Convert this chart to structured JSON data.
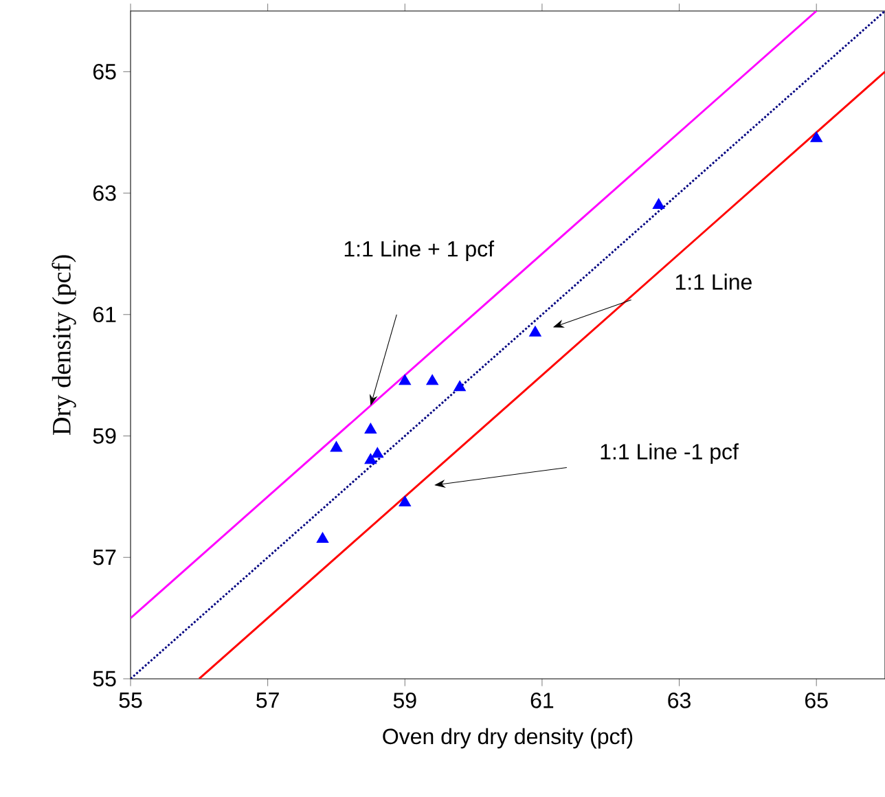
{
  "chart_data": {
    "type": "scatter",
    "xlabel": "Oven dry dry density (pcf)",
    "ylabel": "Dry density (pcf)",
    "xlim": [
      55,
      66
    ],
    "ylim": [
      55,
      66
    ],
    "xticks": [
      55,
      57,
      59,
      61,
      63,
      65
    ],
    "yticks": [
      55,
      57,
      59,
      61,
      63,
      65
    ],
    "grid": false,
    "series": [
      {
        "type": "line",
        "color": "#ff00ff",
        "line_style": "solid",
        "marker": "none",
        "x": [
          55,
          65
        ],
        "values": [
          56,
          66
        ]
      },
      {
        "type": "line",
        "color": "#ff0000",
        "line_style": "solid",
        "marker": "none",
        "x": [
          56,
          66
        ],
        "values": [
          55,
          65
        ]
      },
      {
        "type": "line",
        "color": "#000080",
        "line_style": "dotted",
        "marker": "none",
        "x": [
          55,
          66
        ],
        "values": [
          55,
          66
        ]
      },
      {
        "color": "#0000ff",
        "marker": "triangle",
        "x": [
          57.8,
          58.0,
          58.5,
          58.5,
          58.6,
          59.0,
          59.4,
          59.8,
          59.0,
          60.9,
          62.7,
          65.0
        ],
        "values": [
          57.3,
          58.8,
          59.1,
          58.6,
          58.7,
          59.9,
          59.9,
          59.8,
          57.9,
          60.7,
          62.8,
          63.9
        ]
      }
    ],
    "annotations": [
      "1:1 Line + 1 pcf",
      "1:1 Line",
      "1:1 Line -1 pcf"
    ]
  }
}
